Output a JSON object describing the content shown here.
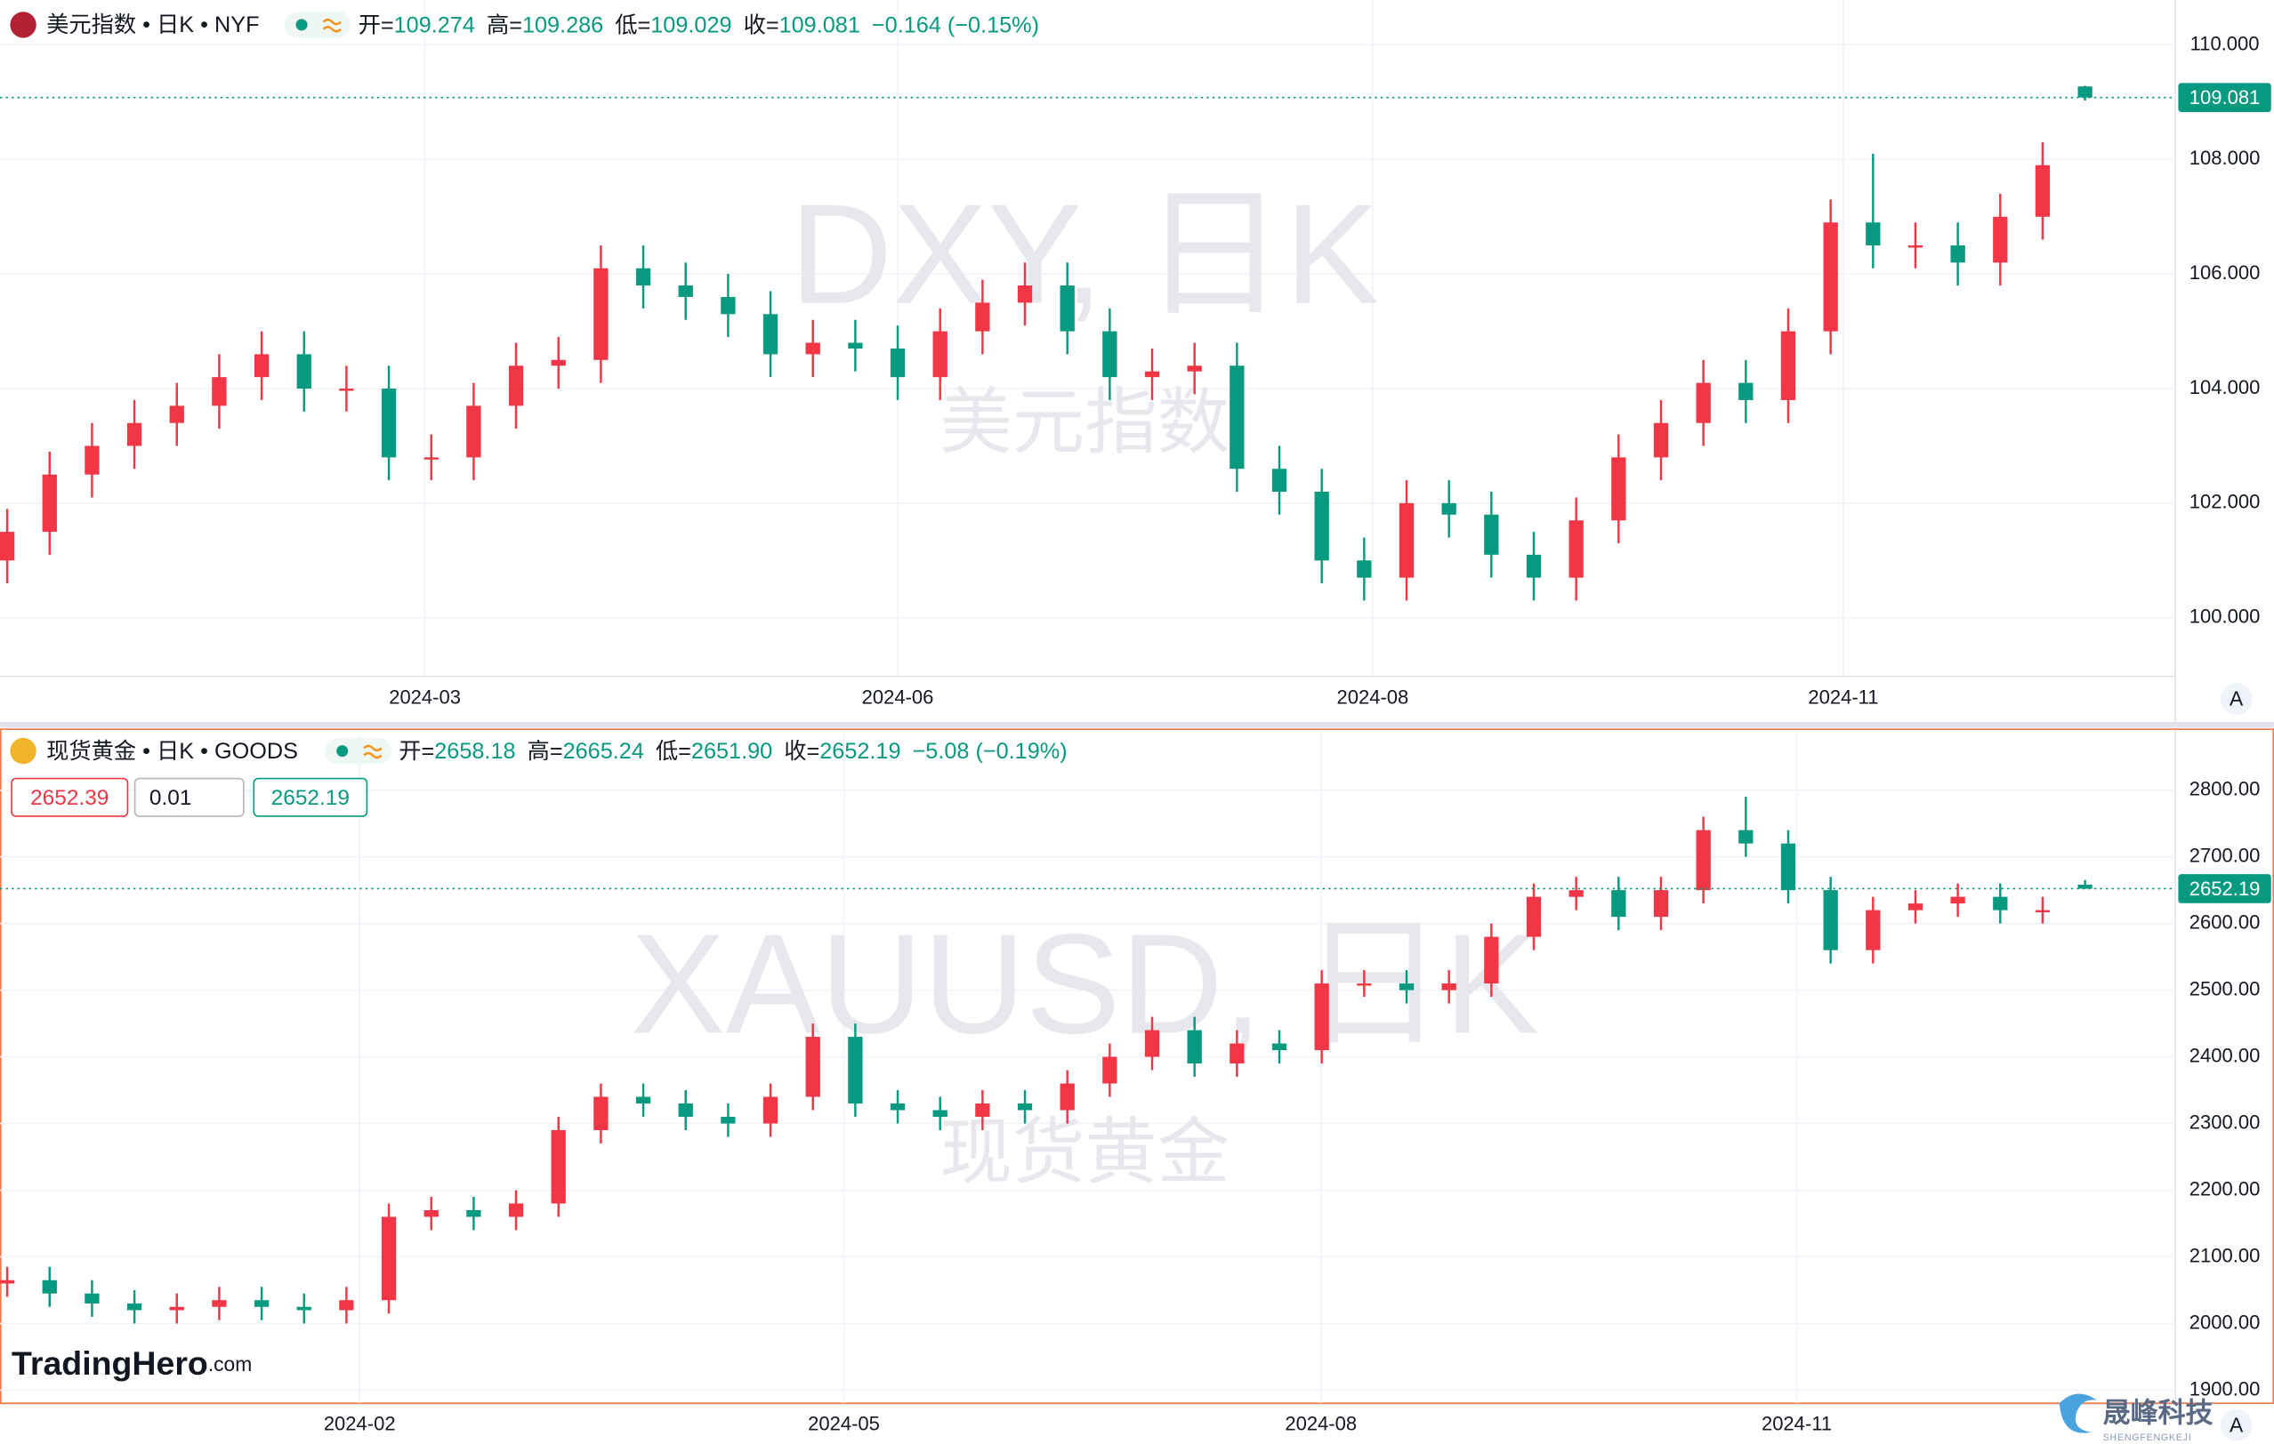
{
  "chart_data": [
    {
      "type": "candlestick",
      "symbol": "美元指数 • 日K • NYF",
      "watermark": "DXY, 日K",
      "watermark_sub": "美元指数",
      "legend": [
        {
          "label": "开=",
          "value": "109.274"
        },
        {
          "label": "高=",
          "value": "109.286"
        },
        {
          "label": "低=",
          "value": "109.029"
        },
        {
          "label": "收=",
          "value": "109.081"
        }
      ],
      "change": "−0.164 (−0.15%)",
      "up_color": "#f23645",
      "down_color": "#089981",
      "grid": true,
      "open": [
        101.0,
        101.5,
        102.5,
        103.0,
        103.4,
        103.7,
        104.2,
        104.6,
        104.0,
        104.0,
        102.8,
        102.8,
        103.7,
        104.4,
        104.5,
        106.1,
        105.8,
        105.6,
        105.3,
        104.6,
        104.8,
        104.7,
        104.2,
        105.0,
        105.5,
        105.8,
        105.0,
        104.2,
        104.3,
        104.4,
        102.6,
        102.2,
        101.0,
        100.7,
        102.0,
        101.8,
        101.1,
        100.7,
        101.7,
        102.8,
        103.4,
        104.1,
        103.8,
        105.0,
        106.9,
        106.5,
        106.5,
        106.2,
        107.0,
        109.274
      ],
      "high": [
        101.9,
        102.9,
        103.4,
        103.8,
        104.1,
        104.6,
        105.0,
        105.0,
        104.4,
        104.4,
        103.2,
        104.1,
        104.8,
        104.9,
        106.5,
        106.5,
        106.2,
        106.0,
        105.7,
        105.2,
        105.2,
        105.1,
        105.4,
        105.9,
        106.2,
        106.2,
        105.4,
        104.7,
        104.8,
        104.8,
        103.0,
        102.6,
        101.4,
        102.4,
        102.4,
        102.2,
        101.5,
        102.1,
        103.2,
        103.8,
        104.5,
        104.5,
        105.4,
        107.3,
        108.1,
        106.9,
        106.9,
        107.4,
        108.3,
        109.286
      ],
      "low": [
        100.6,
        101.1,
        102.1,
        102.6,
        103.0,
        103.3,
        103.8,
        103.6,
        103.6,
        102.4,
        102.4,
        102.4,
        103.3,
        104.0,
        104.1,
        105.4,
        105.2,
        104.9,
        104.2,
        104.2,
        104.3,
        103.8,
        103.8,
        104.6,
        105.1,
        104.6,
        103.8,
        103.8,
        103.9,
        102.2,
        101.8,
        100.6,
        100.3,
        100.3,
        101.4,
        100.7,
        100.3,
        100.3,
        101.3,
        102.4,
        103.0,
        103.4,
        103.4,
        104.6,
        106.1,
        106.1,
        105.8,
        105.8,
        106.6,
        109.029
      ],
      "close": [
        101.5,
        102.5,
        103.0,
        103.4,
        103.7,
        104.2,
        104.6,
        104.0,
        104.0,
        102.8,
        102.8,
        103.7,
        104.4,
        104.5,
        106.1,
        105.8,
        105.6,
        105.3,
        104.6,
        104.8,
        104.7,
        104.2,
        105.0,
        105.5,
        105.8,
        105.0,
        104.2,
        104.3,
        104.4,
        102.6,
        102.2,
        101.0,
        100.7,
        102.0,
        101.8,
        101.1,
        100.7,
        101.7,
        102.8,
        103.4,
        104.1,
        103.8,
        105.0,
        106.9,
        106.5,
        106.5,
        106.2,
        107.0,
        107.9,
        109.081
      ],
      "last_price": 109.081,
      "ylim": [
        98.99,
        110.78
      ],
      "yticks": [
        {
          "value": 100,
          "label": "100.000"
        },
        {
          "value": 102,
          "label": "102.000"
        },
        {
          "value": 104,
          "label": "104.000"
        },
        {
          "value": 106,
          "label": "106.000"
        },
        {
          "value": 108,
          "label": "108.000"
        },
        {
          "value": 110,
          "label": "110.000"
        }
      ],
      "xlim": [
        -0.17,
        51.13
      ],
      "xticks": [
        {
          "value": 9.85,
          "label": "2024-03"
        },
        {
          "value": 21.0,
          "label": "2024-06"
        },
        {
          "value": 32.2,
          "label": "2024-08"
        },
        {
          "value": 43.3,
          "label": "2024-11"
        }
      ],
      "axis_button": "A"
    },
    {
      "type": "candlestick",
      "symbol": "现货黄金 • 日K • GOODS",
      "watermark": "XAUUSD, 日K",
      "watermark_sub": "现货黄金",
      "legend": [
        {
          "label": "开=",
          "value": "2658.18"
        },
        {
          "label": "高=",
          "value": "2665.24"
        },
        {
          "label": "低=",
          "value": "2651.90"
        },
        {
          "label": "收=",
          "value": "2652.19"
        }
      ],
      "change": "−5.08 (−0.19%)",
      "up_color": "#f23645",
      "down_color": "#089981",
      "grid": true,
      "order_buttons": [
        "2652.39",
        "0.01",
        "2652.19"
      ],
      "open": [
        2060,
        2065,
        2045,
        2030,
        2020,
        2025,
        2035,
        2025,
        2020,
        2035,
        2160,
        2170,
        2160,
        2180,
        2290,
        2340,
        2330,
        2310,
        2300,
        2340,
        2430,
        2330,
        2320,
        2310,
        2330,
        2320,
        2360,
        2400,
        2440,
        2390,
        2420,
        2410,
        2510,
        2510,
        2500,
        2510,
        2580,
        2640,
        2650,
        2610,
        2650,
        2740,
        2720,
        2650,
        2560,
        2620,
        2630,
        2640,
        2620,
        2658.18
      ],
      "high": [
        2085,
        2085,
        2065,
        2050,
        2045,
        2055,
        2055,
        2045,
        2055,
        2180,
        2190,
        2190,
        2200,
        2310,
        2360,
        2360,
        2350,
        2330,
        2360,
        2450,
        2450,
        2350,
        2340,
        2350,
        2350,
        2380,
        2420,
        2460,
        2460,
        2440,
        2440,
        2530,
        2530,
        2530,
        2530,
        2600,
        2660,
        2670,
        2670,
        2670,
        2760,
        2790,
        2740,
        2670,
        2640,
        2650,
        2660,
        2660,
        2640,
        2665.24
      ],
      "low": [
        2040,
        2025,
        2010,
        2000,
        2000,
        2005,
        2005,
        2000,
        2000,
        2015,
        2140,
        2140,
        2140,
        2160,
        2270,
        2310,
        2290,
        2280,
        2280,
        2320,
        2310,
        2300,
        2290,
        2290,
        2300,
        2300,
        2340,
        2380,
        2370,
        2370,
        2390,
        2390,
        2490,
        2480,
        2480,
        2490,
        2560,
        2620,
        2590,
        2590,
        2630,
        2700,
        2630,
        2540,
        2540,
        2600,
        2610,
        2600,
        2600,
        2651.9
      ],
      "close": [
        2065,
        2045,
        2030,
        2020,
        2025,
        2035,
        2025,
        2020,
        2035,
        2160,
        2170,
        2160,
        2180,
        2290,
        2340,
        2330,
        2310,
        2300,
        2340,
        2430,
        2330,
        2320,
        2310,
        2330,
        2320,
        2360,
        2400,
        2440,
        2390,
        2420,
        2410,
        2510,
        2510,
        2500,
        2510,
        2580,
        2640,
        2650,
        2610,
        2650,
        2740,
        2720,
        2650,
        2560,
        2620,
        2630,
        2640,
        2620,
        2620,
        2652.19
      ],
      "last_price": 2652.19,
      "ylim": [
        1880.4,
        2887
      ],
      "yticks": [
        {
          "value": 1900,
          "label": "1900.00"
        },
        {
          "value": 2000,
          "label": "2000.00"
        },
        {
          "value": 2100,
          "label": "2100.00"
        },
        {
          "value": 2200,
          "label": "2200.00"
        },
        {
          "value": 2300,
          "label": "2300.00"
        },
        {
          "value": 2400,
          "label": "2400.00"
        },
        {
          "value": 2500,
          "label": "2500.00"
        },
        {
          "value": 2600,
          "label": "2600.00"
        },
        {
          "value": 2700,
          "label": "2700.00"
        },
        {
          "value": 2800,
          "label": "2800.00"
        }
      ],
      "xlim": [
        -0.17,
        51.13
      ],
      "xticks": [
        {
          "value": 8.31,
          "label": "2024-02"
        },
        {
          "value": 19.73,
          "label": "2024-05"
        },
        {
          "value": 30.98,
          "label": "2024-08"
        },
        {
          "value": 42.2,
          "label": "2024-11"
        }
      ],
      "axis_button": "A"
    }
  ],
  "logo": {
    "name": "TradingHero",
    "suffix": ".com"
  },
  "brand": {
    "name": "晟峰科技",
    "pinyin": "SHENGFENGKEJI"
  }
}
